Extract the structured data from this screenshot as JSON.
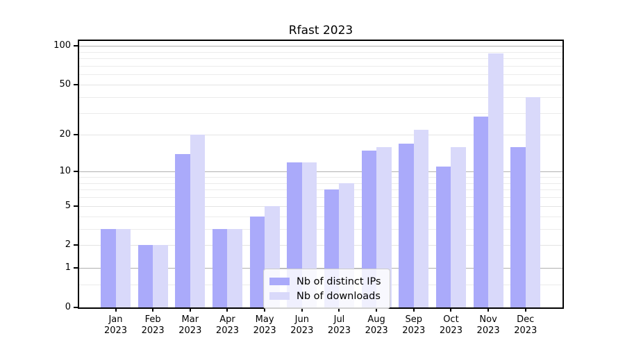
{
  "title": "Rfast 2023",
  "legend": {
    "items": [
      {
        "label": "Nb of distinct IPs",
        "color": "#aaaafa"
      },
      {
        "label": "Nb of downloads",
        "color": "#d9d9fa"
      }
    ]
  },
  "y_axis": {
    "ticks": [
      {
        "label": "100",
        "value": 100
      },
      {
        "label": "50",
        "value": 50
      },
      {
        "label": "20",
        "value": 20
      },
      {
        "label": "10",
        "value": 10
      },
      {
        "label": "5",
        "value": 5
      },
      {
        "label": "2",
        "value": 2
      },
      {
        "label": "1",
        "value": 1
      },
      {
        "label": "0",
        "value": 0
      }
    ]
  },
  "x_axis": {
    "labels": [
      {
        "month": "Jan",
        "year": "2023"
      },
      {
        "month": "Feb",
        "year": "2023"
      },
      {
        "month": "Mar",
        "year": "2023"
      },
      {
        "month": "Apr",
        "year": "2023"
      },
      {
        "month": "May",
        "year": "2023"
      },
      {
        "month": "Jun",
        "year": "2023"
      },
      {
        "month": "Jul",
        "year": "2023"
      },
      {
        "month": "Aug",
        "year": "2023"
      },
      {
        "month": "Sep",
        "year": "2023"
      },
      {
        "month": "Oct",
        "year": "2023"
      },
      {
        "month": "Nov",
        "year": "2023"
      },
      {
        "month": "Dec",
        "year": "2023"
      }
    ]
  },
  "chart_data": {
    "type": "bar",
    "title": "Rfast 2023",
    "scale": "log10(1+y)",
    "categories": [
      "Jan 2023",
      "Feb 2023",
      "Mar 2023",
      "Apr 2023",
      "May 2023",
      "Jun 2023",
      "Jul 2023",
      "Aug 2023",
      "Sep 2023",
      "Oct 2023",
      "Nov 2023",
      "Dec 2023"
    ],
    "series": [
      {
        "name": "Nb of distinct IPs",
        "color": "#aaaafa",
        "values": [
          3,
          2,
          14,
          3,
          4,
          12,
          7,
          15,
          17,
          11,
          28,
          16
        ]
      },
      {
        "name": "Nb of downloads",
        "color": "#d9d9fa",
        "values": [
          3,
          2,
          20,
          3,
          5,
          12,
          8,
          16,
          22,
          16,
          87,
          40
        ]
      }
    ],
    "xlabel": "",
    "ylabel": "",
    "y_ticks": [
      0,
      1,
      2,
      5,
      10,
      20,
      50,
      100
    ],
    "ylim": [
      0,
      107
    ],
    "grid": true,
    "legend_position": "lower center"
  }
}
